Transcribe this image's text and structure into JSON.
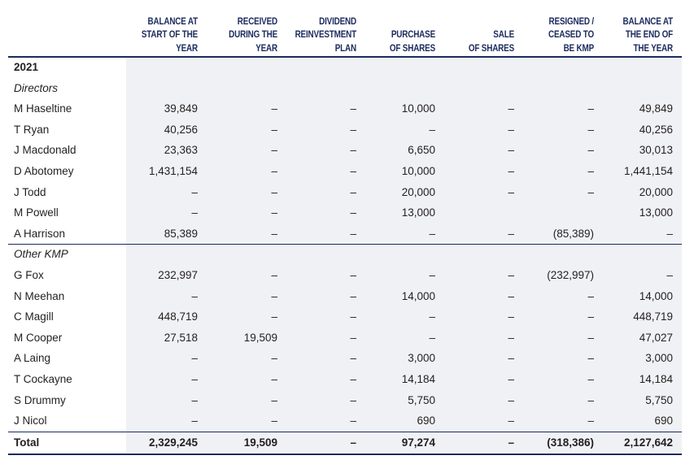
{
  "columns": [
    {
      "key": "start",
      "label": "BALANCE AT\nSTART OF THE\nYEAR"
    },
    {
      "key": "received",
      "label": "RECEIVED\nDURING THE\nYEAR"
    },
    {
      "key": "drp",
      "label": "DIVIDEND\nREINVESTMENT\nPLAN"
    },
    {
      "key": "purchase",
      "label": "PURCHASE\nOF SHARES"
    },
    {
      "key": "sale",
      "label": "SALE\nOF SHARES"
    },
    {
      "key": "resigned",
      "label": "RESIGNED /\nCEASED TO\nBE KMP"
    },
    {
      "key": "end",
      "label": "BALANCE AT\nTHE END OF\nTHE YEAR"
    }
  ],
  "year": "2021",
  "sections": [
    {
      "title": "Directors",
      "rows": [
        {
          "name": "M Haseltine",
          "values": [
            "39,849",
            "–",
            "–",
            "10,000",
            "–",
            "–",
            "49,849"
          ]
        },
        {
          "name": "T Ryan",
          "values": [
            "40,256",
            "–",
            "–",
            "–",
            "–",
            "–",
            "40,256"
          ]
        },
        {
          "name": "J Macdonald",
          "values": [
            "23,363",
            "–",
            "–",
            "6,650",
            "–",
            "–",
            "30,013"
          ]
        },
        {
          "name": "D Abotomey",
          "values": [
            "1,431,154",
            "–",
            "–",
            "10,000",
            "–",
            "–",
            "1,441,154"
          ]
        },
        {
          "name": "J Todd",
          "values": [
            "–",
            "–",
            "–",
            "20,000",
            "–",
            "–",
            "20,000"
          ]
        },
        {
          "name": "M Powell",
          "values": [
            "–",
            "–",
            "–",
            "13,000",
            "",
            "",
            "13,000"
          ]
        },
        {
          "name": "A Harrison",
          "values": [
            "85,389",
            "–",
            "–",
            "–",
            "–",
            "(85,389)",
            "–"
          ]
        }
      ]
    },
    {
      "title": "Other KMP",
      "rows": [
        {
          "name": "G Fox",
          "values": [
            "232,997",
            "–",
            "–",
            "–",
            "–",
            "(232,997)",
            "–"
          ]
        },
        {
          "name": "N Meehan",
          "values": [
            "–",
            "–",
            "–",
            "14,000",
            "–",
            "–",
            "14,000"
          ]
        },
        {
          "name": "C Magill",
          "values": [
            "448,719",
            "–",
            "–",
            "–",
            "–",
            "–",
            "448,719"
          ]
        },
        {
          "name": "M Cooper",
          "values": [
            "27,518",
            "19,509",
            "–",
            "–",
            "–",
            "–",
            "47,027"
          ]
        },
        {
          "name": "A Laing",
          "values": [
            "–",
            "–",
            "–",
            "3,000",
            "–",
            "–",
            "3,000"
          ]
        },
        {
          "name": "T Cockayne",
          "values": [
            "–",
            "–",
            "–",
            "14,184",
            "–",
            "–",
            "14,184"
          ]
        },
        {
          "name": "S Drummy",
          "values": [
            "–",
            "–",
            "–",
            "5,750",
            "–",
            "–",
            "5,750"
          ]
        },
        {
          "name": "J Nicol",
          "values": [
            "–",
            "–",
            "–",
            "690",
            "–",
            "–",
            "690"
          ]
        }
      ]
    }
  ],
  "total": {
    "label": "Total",
    "values": [
      "2,329,245",
      "19,509",
      "–",
      "97,274",
      "–",
      "(318,386)",
      "2,127,642"
    ]
  },
  "colors": {
    "header_text": "#1a2a5e",
    "rule": "#1a2a5e",
    "shade": "#f0f1f5",
    "text": "#231f20"
  }
}
